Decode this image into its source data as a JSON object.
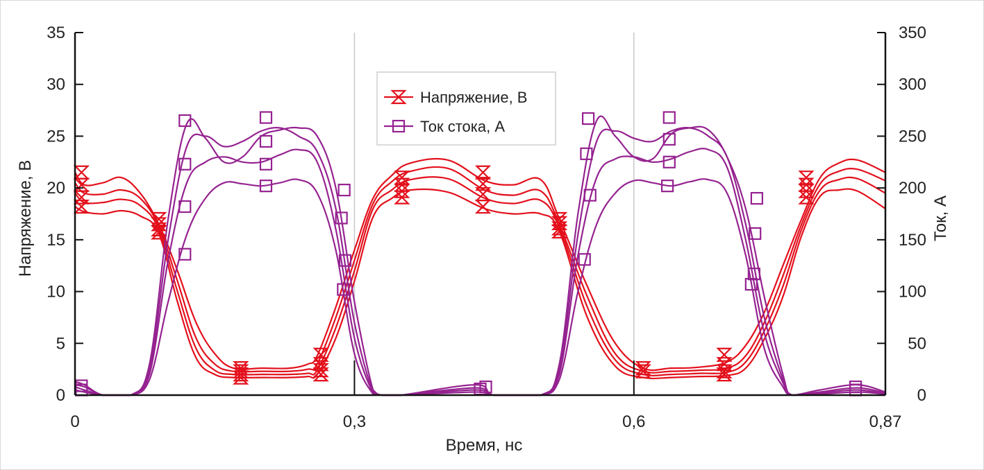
{
  "chart_data": {
    "type": "line",
    "xlabel": "Время, нс",
    "ylabel_left": "Напряжение, В",
    "ylabel_right": "Ток, А",
    "xlim": [
      0,
      0.87
    ],
    "ylim_left": [
      0,
      35
    ],
    "ylim_right": [
      0,
      350
    ],
    "x_ticks": [
      {
        "value": 0,
        "label": "0"
      },
      {
        "value": 0.3,
        "label": "0,3"
      },
      {
        "value": 0.6,
        "label": "0,6"
      },
      {
        "value": 0.87,
        "label": "0,87"
      }
    ],
    "y_left_ticks": [
      {
        "value": 0,
        "label": "0"
      },
      {
        "value": 5,
        "label": "5"
      },
      {
        "value": 10,
        "label": "10"
      },
      {
        "value": 15,
        "label": "15"
      },
      {
        "value": 20,
        "label": "20"
      },
      {
        "value": 25,
        "label": "25"
      },
      {
        "value": 30,
        "label": "30"
      },
      {
        "value": 35,
        "label": "35"
      }
    ],
    "y_right_ticks": [
      {
        "value": 0,
        "label": "0"
      },
      {
        "value": 50,
        "label": "50"
      },
      {
        "value": 100,
        "label": "100"
      },
      {
        "value": 150,
        "label": "150"
      },
      {
        "value": 200,
        "label": "200"
      },
      {
        "value": 250,
        "label": "250"
      },
      {
        "value": 300,
        "label": "300"
      },
      {
        "value": 350,
        "label": "350"
      }
    ],
    "grid": {
      "vertical_at": [
        0.3,
        0.6
      ]
    },
    "legend": {
      "position": "top-center",
      "entries": [
        {
          "label": "Напряжение, В",
          "marker": "hourglass",
          "color": "#e3101c"
        },
        {
          "label": "Ток стока, А",
          "marker": "square",
          "color": "#952290"
        }
      ]
    },
    "colors": {
      "voltage": "#e3101c",
      "current": "#952290"
    },
    "voltage_series": [
      {
        "axis": "left",
        "x": [
          0,
          0.01,
          0.03,
          0.05,
          0.07,
          0.09,
          0.11,
          0.13,
          0.15,
          0.17,
          0.2,
          0.23,
          0.25,
          0.26,
          0.28,
          0.3,
          0.32,
          0.34,
          0.36,
          0.4,
          0.44,
          0.47,
          0.5,
          0.52,
          0.55,
          0.58,
          0.61,
          0.64,
          0.67,
          0.7,
          0.72,
          0.74,
          0.76,
          0.78,
          0.8,
          0.82,
          0.84,
          0.87
        ],
        "y": [
          21.5,
          20.3,
          20.5,
          21.0,
          19.5,
          16.5,
          12.0,
          7.0,
          4.0,
          2.6,
          2.6,
          2.6,
          3.0,
          3.8,
          8.5,
          14.0,
          19.0,
          21.2,
          22.4,
          22.7,
          20.7,
          20.3,
          20.8,
          17.0,
          10.5,
          5.0,
          2.6,
          2.6,
          2.7,
          3.2,
          4.8,
          8.0,
          12.5,
          17.0,
          21.0,
          22.4,
          22.7,
          21.5
        ]
      },
      {
        "axis": "left",
        "x": [
          0,
          0.01,
          0.03,
          0.05,
          0.07,
          0.09,
          0.11,
          0.13,
          0.15,
          0.17,
          0.2,
          0.23,
          0.25,
          0.26,
          0.28,
          0.3,
          0.32,
          0.34,
          0.36,
          0.4,
          0.44,
          0.47,
          0.5,
          0.52,
          0.55,
          0.58,
          0.61,
          0.64,
          0.67,
          0.7,
          0.72,
          0.74,
          0.76,
          0.78,
          0.8,
          0.82,
          0.84,
          0.87
        ],
        "y": [
          20.5,
          19.5,
          19.4,
          19.8,
          19.0,
          16.3,
          11.0,
          5.5,
          3.0,
          2.3,
          2.3,
          2.3,
          2.5,
          3.0,
          7.5,
          13.0,
          18.5,
          20.6,
          21.6,
          21.9,
          19.8,
          19.3,
          19.7,
          16.5,
          9.5,
          4.0,
          2.3,
          2.3,
          2.4,
          2.6,
          3.8,
          7.0,
          11.5,
          16.5,
          20.4,
          21.6,
          21.8,
          20.7
        ]
      },
      {
        "axis": "left",
        "x": [
          0,
          0.01,
          0.03,
          0.05,
          0.07,
          0.09,
          0.11,
          0.13,
          0.15,
          0.17,
          0.2,
          0.23,
          0.25,
          0.26,
          0.28,
          0.3,
          0.32,
          0.34,
          0.36,
          0.4,
          0.44,
          0.47,
          0.5,
          0.52,
          0.55,
          0.58,
          0.61,
          0.64,
          0.67,
          0.7,
          0.72,
          0.74,
          0.76,
          0.78,
          0.8,
          0.82,
          0.84,
          0.87
        ],
        "y": [
          19.5,
          18.6,
          18.6,
          18.9,
          18.3,
          16.0,
          10.0,
          4.5,
          2.4,
          2.0,
          2.0,
          2.0,
          2.1,
          2.4,
          6.5,
          12.0,
          18.0,
          19.8,
          20.8,
          20.9,
          19.0,
          18.5,
          18.8,
          16.2,
          8.5,
          3.4,
          2.0,
          2.0,
          2.1,
          2.2,
          3.2,
          6.2,
          10.5,
          16.0,
          19.8,
          20.8,
          20.9,
          19.5
        ]
      },
      {
        "axis": "left",
        "x": [
          0,
          0.01,
          0.03,
          0.05,
          0.07,
          0.09,
          0.11,
          0.13,
          0.15,
          0.17,
          0.2,
          0.23,
          0.25,
          0.26,
          0.28,
          0.3,
          0.32,
          0.34,
          0.36,
          0.4,
          0.44,
          0.47,
          0.5,
          0.52,
          0.55,
          0.58,
          0.61,
          0.64,
          0.67,
          0.7,
          0.72,
          0.74,
          0.76,
          0.78,
          0.8,
          0.82,
          0.84,
          0.87
        ],
        "y": [
          18.2,
          17.7,
          17.5,
          17.8,
          17.3,
          15.6,
          9.0,
          3.6,
          2.0,
          1.7,
          1.7,
          1.7,
          1.8,
          2.0,
          5.5,
          11.0,
          17.2,
          19.0,
          19.8,
          19.6,
          18.0,
          17.5,
          17.5,
          15.8,
          7.5,
          2.8,
          1.7,
          1.7,
          1.8,
          1.9,
          2.6,
          5.4,
          9.5,
          15.4,
          19.2,
          19.8,
          19.7,
          18.0
        ]
      }
    ],
    "current_series": [
      {
        "axis": "right",
        "x": [
          0,
          0.01,
          0.03,
          0.06,
          0.08,
          0.1,
          0.12,
          0.14,
          0.16,
          0.18,
          0.2,
          0.22,
          0.24,
          0.26,
          0.28,
          0.3,
          0.32,
          0.33,
          0.35,
          0.43,
          0.45,
          0.5,
          0.52,
          0.54,
          0.56,
          0.58,
          0.6,
          0.62,
          0.64,
          0.66,
          0.68,
          0.7,
          0.72,
          0.74,
          0.76,
          0.77,
          0.8,
          0.84,
          0.87
        ],
        "y": [
          13,
          10,
          0,
          0,
          30,
          170,
          262,
          248,
          225,
          230,
          250,
          256,
          258,
          250,
          200,
          90,
          5,
          0,
          0,
          10,
          0,
          0,
          30,
          175,
          265,
          250,
          230,
          228,
          252,
          258,
          256,
          230,
          180,
          95,
          20,
          0,
          5,
          10,
          3
        ]
      },
      {
        "axis": "right",
        "x": [
          0,
          0.01,
          0.03,
          0.06,
          0.08,
          0.1,
          0.12,
          0.14,
          0.16,
          0.18,
          0.2,
          0.22,
          0.24,
          0.26,
          0.28,
          0.3,
          0.32,
          0.33,
          0.35,
          0.43,
          0.45,
          0.5,
          0.52,
          0.54,
          0.56,
          0.58,
          0.6,
          0.62,
          0.64,
          0.66,
          0.68,
          0.7,
          0.72,
          0.74,
          0.76,
          0.77,
          0.8,
          0.84,
          0.87
        ],
        "y": [
          10,
          8,
          0,
          0,
          25,
          150,
          240,
          250,
          240,
          245,
          255,
          258,
          250,
          235,
          180,
          70,
          3,
          0,
          0,
          7,
          0,
          0,
          25,
          155,
          245,
          255,
          248,
          245,
          255,
          258,
          250,
          230,
          165,
          75,
          15,
          0,
          3,
          7,
          2
        ]
      },
      {
        "axis": "right",
        "x": [
          0,
          0.01,
          0.03,
          0.06,
          0.08,
          0.1,
          0.12,
          0.14,
          0.16,
          0.18,
          0.2,
          0.22,
          0.24,
          0.26,
          0.28,
          0.3,
          0.32,
          0.33,
          0.35,
          0.43,
          0.45,
          0.5,
          0.52,
          0.54,
          0.56,
          0.58,
          0.6,
          0.62,
          0.64,
          0.66,
          0.68,
          0.7,
          0.72,
          0.74,
          0.76,
          0.77,
          0.8,
          0.84,
          0.87
        ],
        "y": [
          8,
          5,
          0,
          0,
          20,
          130,
          205,
          225,
          230,
          225,
          225,
          232,
          237,
          225,
          160,
          55,
          2,
          0,
          0,
          5,
          0,
          0,
          20,
          135,
          210,
          228,
          230,
          225,
          228,
          235,
          237,
          220,
          150,
          60,
          12,
          0,
          2,
          5,
          1
        ]
      },
      {
        "axis": "right",
        "x": [
          0,
          0.01,
          0.03,
          0.06,
          0.08,
          0.1,
          0.12,
          0.14,
          0.16,
          0.18,
          0.2,
          0.22,
          0.24,
          0.26,
          0.28,
          0.3,
          0.32,
          0.33,
          0.35,
          0.43,
          0.45,
          0.5,
          0.52,
          0.54,
          0.56,
          0.58,
          0.6,
          0.62,
          0.64,
          0.66,
          0.68,
          0.7,
          0.72,
          0.74,
          0.76,
          0.77,
          0.8,
          0.84,
          0.87
        ],
        "y": [
          5,
          3,
          0,
          0,
          15,
          90,
          155,
          190,
          205,
          204,
          202,
          205,
          208,
          195,
          140,
          40,
          1,
          0,
          0,
          3,
          0,
          0,
          15,
          100,
          165,
          195,
          207,
          205,
          202,
          206,
          208,
          195,
          135,
          45,
          8,
          0,
          1,
          3,
          1
        ]
      }
    ],
    "voltage_markers": [
      {
        "x": 0.007,
        "y": 21.5
      },
      {
        "x": 0.007,
        "y": 20.3
      },
      {
        "x": 0.007,
        "y": 19.1
      },
      {
        "x": 0.007,
        "y": 18.2
      },
      {
        "x": 0.09,
        "y": 17.0
      },
      {
        "x": 0.09,
        "y": 16.5
      },
      {
        "x": 0.09,
        "y": 16.0
      },
      {
        "x": 0.09,
        "y": 15.7
      },
      {
        "x": 0.178,
        "y": 2.6
      },
      {
        "x": 0.178,
        "y": 2.3
      },
      {
        "x": 0.178,
        "y": 2.0
      },
      {
        "x": 0.178,
        "y": 1.7
      },
      {
        "x": 0.264,
        "y": 3.9
      },
      {
        "x": 0.264,
        "y": 3.0
      },
      {
        "x": 0.264,
        "y": 2.4
      },
      {
        "x": 0.264,
        "y": 2.0
      },
      {
        "x": 0.351,
        "y": 21.0
      },
      {
        "x": 0.351,
        "y": 20.3
      },
      {
        "x": 0.351,
        "y": 19.7
      },
      {
        "x": 0.351,
        "y": 19.1
      },
      {
        "x": 0.438,
        "y": 21.5
      },
      {
        "x": 0.438,
        "y": 20.4
      },
      {
        "x": 0.438,
        "y": 19.4
      },
      {
        "x": 0.438,
        "y": 18.2
      },
      {
        "x": 0.52,
        "y": 17.0
      },
      {
        "x": 0.52,
        "y": 16.6
      },
      {
        "x": 0.52,
        "y": 16.1
      },
      {
        "x": 0.52,
        "y": 15.8
      },
      {
        "x": 0.61,
        "y": 2.6
      },
      {
        "x": 0.61,
        "y": 2.3
      },
      {
        "x": 0.697,
        "y": 3.9
      },
      {
        "x": 0.697,
        "y": 3.0
      },
      {
        "x": 0.697,
        "y": 2.3
      },
      {
        "x": 0.697,
        "y": 2.0
      },
      {
        "x": 0.785,
        "y": 21.0
      },
      {
        "x": 0.785,
        "y": 20.3
      },
      {
        "x": 0.785,
        "y": 19.7
      },
      {
        "x": 0.785,
        "y": 19.1
      }
    ],
    "current_markers": [
      {
        "x": 0.007,
        "y": 9
      },
      {
        "x": 0.007,
        "y": 5
      },
      {
        "x": 0.118,
        "y": 265
      },
      {
        "x": 0.118,
        "y": 223
      },
      {
        "x": 0.118,
        "y": 182
      },
      {
        "x": 0.118,
        "y": 136
      },
      {
        "x": 0.205,
        "y": 268
      },
      {
        "x": 0.205,
        "y": 245
      },
      {
        "x": 0.205,
        "y": 223
      },
      {
        "x": 0.205,
        "y": 202
      },
      {
        "x": 0.289,
        "y": 198
      },
      {
        "x": 0.286,
        "y": 171
      },
      {
        "x": 0.29,
        "y": 130
      },
      {
        "x": 0.288,
        "y": 102
      },
      {
        "x": 0.435,
        "y": 6
      },
      {
        "x": 0.441,
        "y": 8
      },
      {
        "x": 0.551,
        "y": 267
      },
      {
        "x": 0.549,
        "y": 233
      },
      {
        "x": 0.553,
        "y": 193
      },
      {
        "x": 0.547,
        "y": 131
      },
      {
        "x": 0.638,
        "y": 268
      },
      {
        "x": 0.638,
        "y": 247
      },
      {
        "x": 0.638,
        "y": 225
      },
      {
        "x": 0.636,
        "y": 202
      },
      {
        "x": 0.732,
        "y": 190
      },
      {
        "x": 0.73,
        "y": 156
      },
      {
        "x": 0.729,
        "y": 117
      },
      {
        "x": 0.726,
        "y": 107
      },
      {
        "x": 0.838,
        "y": 8
      },
      {
        "x": 0.838,
        "y": 5
      }
    ]
  }
}
